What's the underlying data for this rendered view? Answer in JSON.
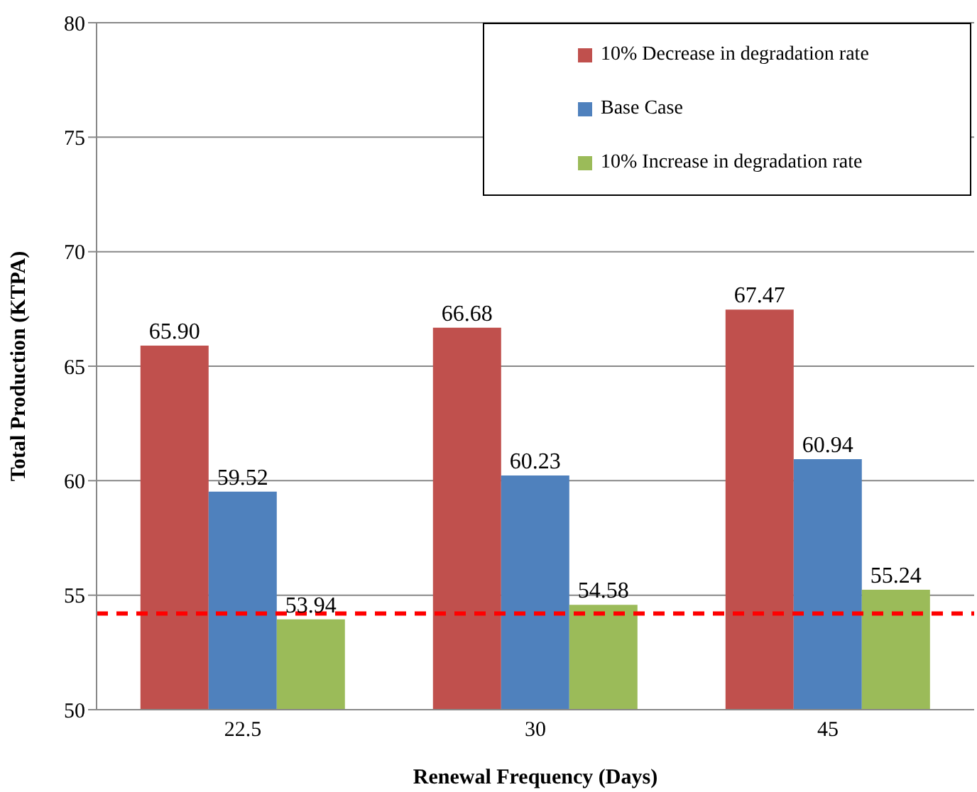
{
  "chart_data": {
    "type": "bar",
    "xlabel": "Renewal Frequency (Days)",
    "ylabel": "Total Production (KTPA)",
    "categories": [
      "22.5",
      "30",
      "45"
    ],
    "series": [
      {
        "name": "10% Decrease in degradation rate",
        "color": "#c0504d",
        "values": [
          65.9,
          66.68,
          67.47
        ]
      },
      {
        "name": "Base Case",
        "color": "#4f81bd",
        "values": [
          59.52,
          60.23,
          60.94
        ]
      },
      {
        "name": "10% Increase in degradation rate",
        "color": "#9bbb59",
        "values": [
          53.94,
          54.58,
          55.24
        ]
      }
    ],
    "value_labels": [
      [
        "65.90",
        "66.68",
        "67.47"
      ],
      [
        "59.52",
        "60.23",
        "60.94"
      ],
      [
        "53.94",
        "54.58",
        "55.24"
      ]
    ],
    "ylim": [
      50,
      80
    ],
    "yticks": [
      50,
      55,
      60,
      65,
      70,
      75,
      80
    ],
    "grid": "y",
    "legend": "top right",
    "ref_lines": [
      {
        "axis": "y",
        "value": 54.2,
        "color": "#ff0000",
        "line_style": "dashed"
      }
    ]
  }
}
